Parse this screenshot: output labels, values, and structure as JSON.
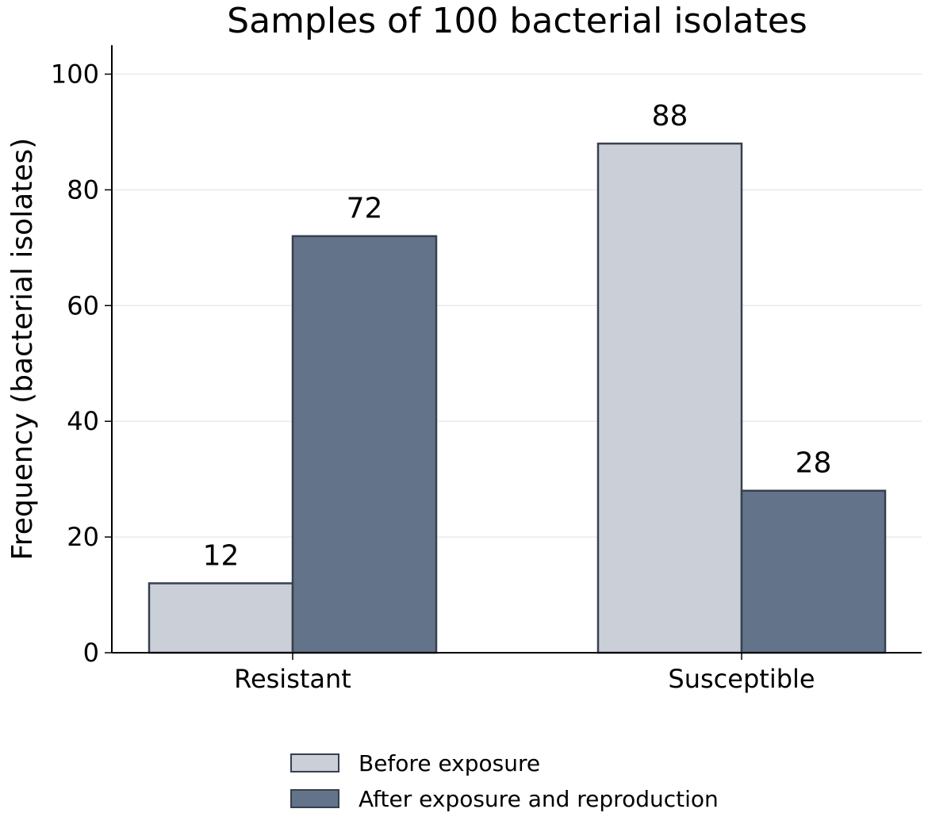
{
  "chart_data": {
    "type": "bar",
    "title": "Samples of 100 bacterial isolates",
    "xlabel": "",
    "ylabel": "Frequency (bacterial isolates)",
    "categories": [
      "Resistant",
      "Susceptible"
    ],
    "series": [
      {
        "name": "Before exposure",
        "values": [
          12,
          88
        ],
        "color": "#cbcfd7"
      },
      {
        "name": "After exposure and reproduction",
        "values": [
          72,
          28
        ],
        "color": "#637389"
      }
    ],
    "bar_edge_color": "#36404e",
    "ylim": [
      0,
      105
    ],
    "yticks": [
      0,
      20,
      40,
      60,
      80,
      100
    ],
    "grid": "horizontal",
    "legend_position": "bottom-center"
  }
}
